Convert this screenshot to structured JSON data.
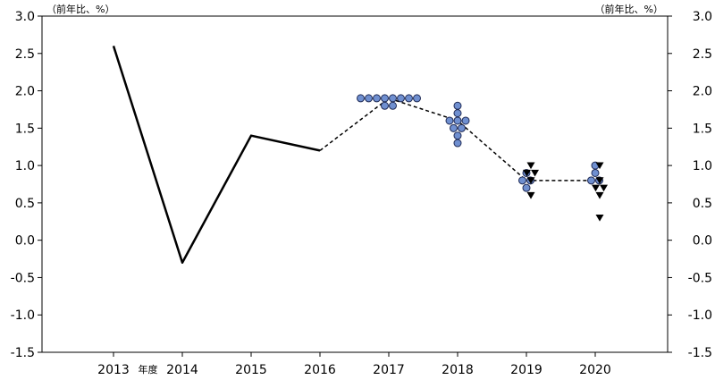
{
  "chart_data": {
    "type": "line",
    "unit_left": "（前年比、%）",
    "unit_right": "（前年比、%）",
    "ylim": [
      -1.5,
      3.0
    ],
    "y_ticks": [
      "3.0",
      "2.5",
      "2.0",
      "1.5",
      "1.0",
      "0.5",
      "0.0",
      "-0.5",
      "-1.0",
      "-1.5"
    ],
    "x_categories": [
      "2013",
      "2014",
      "2015",
      "2016",
      "2017",
      "2018",
      "2019",
      "2020"
    ],
    "x_suffix_label": "年度",
    "grid": false,
    "legend": "none",
    "series": [
      {
        "style": "solid",
        "x": [
          "2013",
          "2014",
          "2015",
          "2016"
        ],
        "values": [
          2.6,
          -0.3,
          1.4,
          1.2
        ]
      },
      {
        "style": "dashed",
        "x": [
          "2016",
          "2017",
          "2018",
          "2019",
          "2020"
        ],
        "values": [
          1.2,
          1.9,
          1.6,
          0.8,
          0.8
        ]
      }
    ],
    "forecast_circles": [
      {
        "year": "2017",
        "values": [
          1.9,
          1.9,
          1.9,
          1.9,
          1.9,
          1.9,
          1.9,
          1.9,
          1.8,
          1.8
        ]
      },
      {
        "year": "2018",
        "values": [
          1.8,
          1.7,
          1.6,
          1.6,
          1.6,
          1.5,
          1.5,
          1.4,
          1.3
        ]
      },
      {
        "year": "2019",
        "values": [
          0.9,
          0.8,
          0.8,
          0.7
        ]
      },
      {
        "year": "2020",
        "values": [
          1.0,
          0.9,
          0.8,
          0.8
        ]
      }
    ],
    "forecast_triangles": [
      {
        "year": "2019",
        "values": [
          1.0,
          0.9,
          0.9,
          0.8,
          0.6
        ]
      },
      {
        "year": "2020",
        "values": [
          1.0,
          0.8,
          0.7,
          0.7,
          0.6,
          0.3
        ]
      }
    ],
    "colors": {
      "line": "#000000",
      "circle_fill": "#6f8fd0",
      "circle_stroke": "#1f2a55",
      "triangle": "#000000",
      "axis": "#000000"
    }
  }
}
